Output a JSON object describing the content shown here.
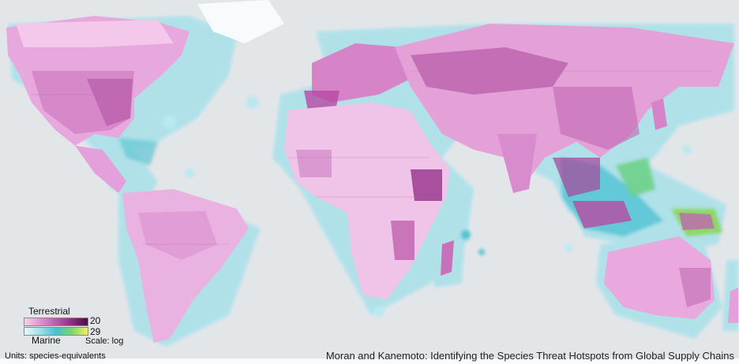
{
  "map": {
    "projection": "world equirectangular-style",
    "colors": {
      "ocean": "#e4e7ea",
      "land_base": "#eadbe7",
      "terrestrial_low": "#f4c9ec",
      "terrestrial_mid": "#d97fc9",
      "terrestrial_high": "#a63d94",
      "marine_low": "#c4eef4",
      "marine_mid": "#65c8d6",
      "marine_high": "#88d76a",
      "ice": "#f7fbfc"
    }
  },
  "legend": {
    "terrestrial_label": "Terrestrial",
    "terrestrial_max": "20",
    "marine_label": "Marine",
    "marine_max": "29",
    "scale_label": "Scale: log"
  },
  "units_label": "Units: species-equivalents",
  "credit": "Moran and Kanemoto: Identifying the Species Threat Hotspots from Global Supply Chains"
}
